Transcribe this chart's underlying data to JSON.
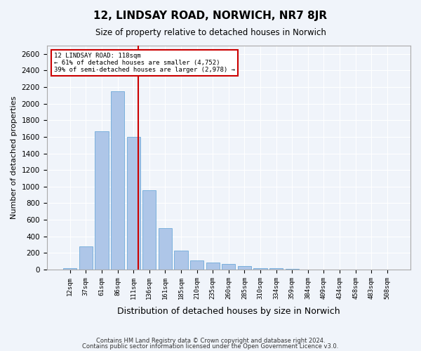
{
  "title1": "12, LINDSAY ROAD, NORWICH, NR7 8JR",
  "title2": "Size of property relative to detached houses in Norwich",
  "xlabel": "Distribution of detached houses by size in Norwich",
  "ylabel": "Number of detached properties",
  "categories": [
    "12sqm",
    "37sqm",
    "61sqm",
    "86sqm",
    "111sqm",
    "136sqm",
    "161sqm",
    "185sqm",
    "210sqm",
    "235sqm",
    "260sqm",
    "285sqm",
    "310sqm",
    "334sqm",
    "359sqm",
    "384sqm",
    "409sqm",
    "434sqm",
    "458sqm",
    "483sqm",
    "508sqm"
  ],
  "values": [
    20,
    280,
    1670,
    2150,
    1600,
    960,
    500,
    230,
    110,
    80,
    65,
    40,
    20,
    15,
    5,
    2,
    1,
    1,
    1,
    1,
    1
  ],
  "bar_color": "#aec6e8",
  "bar_edge_color": "#5a9fd4",
  "vline_x": 4,
  "vline_color": "#cc0000",
  "annotation_title": "12 LINDSAY ROAD: 118sqm",
  "annotation_line1": "← 61% of detached houses are smaller (4,752)",
  "annotation_line2": "39% of semi-detached houses are larger (2,978) →",
  "annotation_box_color": "#cc0000",
  "ylim": [
    0,
    2700
  ],
  "yticks": [
    0,
    200,
    400,
    600,
    800,
    1000,
    1200,
    1400,
    1600,
    1800,
    2000,
    2200,
    2400,
    2600
  ],
  "footer1": "Contains HM Land Registry data © Crown copyright and database right 2024.",
  "footer2": "Contains public sector information licensed under the Open Government Licence v3.0.",
  "bg_color": "#f0f4fa",
  "plot_bg_color": "#f0f4fa"
}
